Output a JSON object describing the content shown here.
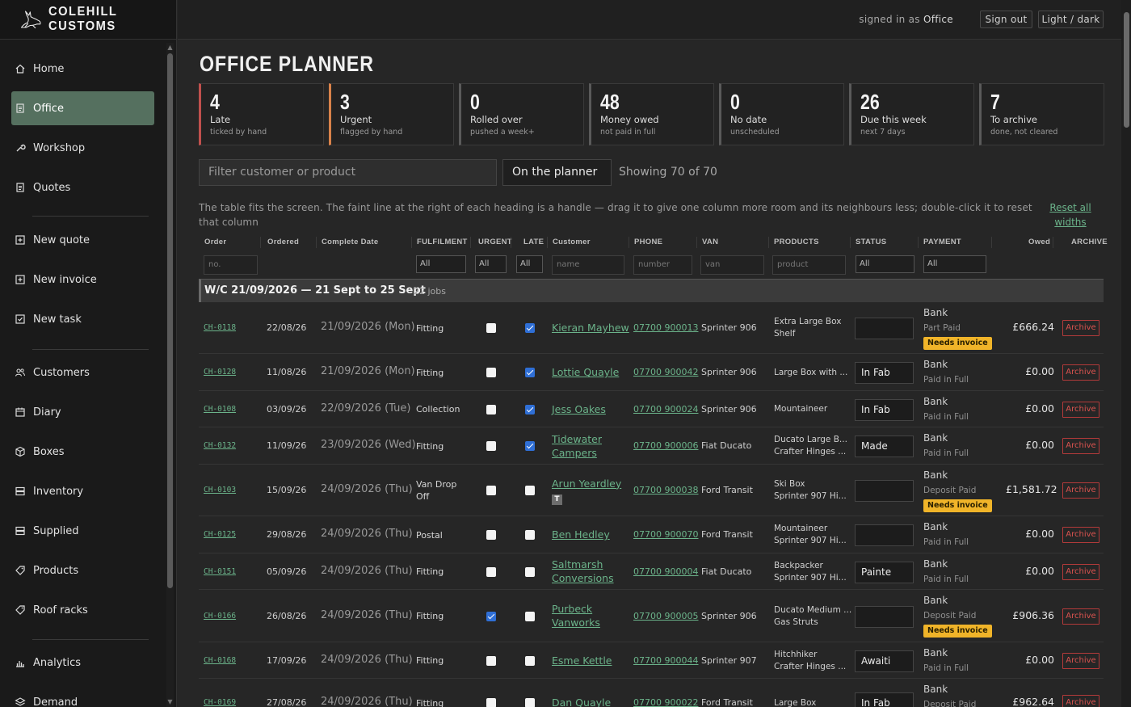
{
  "app": {
    "brand": "COLEHILL CUSTOMS"
  },
  "topbar": {
    "signed_prefix": "signed in as",
    "user": "Office",
    "sign_out": "Sign out",
    "theme": "Light / dark"
  },
  "sidebar": {
    "items": [
      {
        "label": "Home",
        "icon": "home-icon"
      },
      {
        "label": "Office",
        "icon": "document-icon",
        "active": true
      },
      {
        "label": "Workshop",
        "icon": "wrench-icon"
      },
      {
        "label": "Quotes",
        "icon": "document-icon"
      },
      {
        "label": "New quote",
        "icon": "plus-box-icon"
      },
      {
        "label": "New invoice",
        "icon": "plus-box-icon"
      },
      {
        "label": "New task",
        "icon": "check-box-icon"
      },
      {
        "label": "Customers",
        "icon": "users-icon"
      },
      {
        "label": "Diary",
        "icon": "calendar-icon"
      },
      {
        "label": "Boxes",
        "icon": "box-icon"
      },
      {
        "label": "Inventory",
        "icon": "stack-icon"
      },
      {
        "label": "Supplied",
        "icon": "stack-icon"
      },
      {
        "label": "Products",
        "icon": "tag-icon"
      },
      {
        "label": "Roof racks",
        "icon": "tag-icon"
      },
      {
        "label": "Analytics",
        "icon": "bar-chart-icon"
      },
      {
        "label": "Demand",
        "icon": "layers-icon"
      }
    ]
  },
  "page": {
    "title": "OFFICE PLANNER"
  },
  "cards": [
    {
      "num": "4",
      "label": "Late",
      "sub": "ticked by hand",
      "color": "#c0504d"
    },
    {
      "num": "3",
      "label": "Urgent",
      "sub": "flagged by hand",
      "color": "#d9824a"
    },
    {
      "num": "0",
      "label": "Rolled over",
      "sub": "pushed a week+",
      "color": "#5a5a5a"
    },
    {
      "num": "48",
      "label": "Money owed",
      "sub": "not paid in full",
      "color": "#5a5a5a"
    },
    {
      "num": "0",
      "label": "No date",
      "sub": "unscheduled",
      "color": "#5a5a5a"
    },
    {
      "num": "26",
      "label": "Due this week",
      "sub": "next 7 days",
      "color": "#5a5a5a"
    },
    {
      "num": "7",
      "label": "To archive",
      "sub": "done, not cleared",
      "color": "#5a5a5a"
    }
  ],
  "controls": {
    "filter_placeholder": "Filter customer or product",
    "view": "On the planner",
    "showing": "Showing 70 of 70"
  },
  "hint": "The table fits the screen. The faint line at the right of each heading is a handle — drag it to give one column more room and its neighbours less; double-click it to reset that column",
  "reset": "Reset all widths",
  "headers": [
    "Order",
    "Ordered",
    "Complete Date",
    "FULFILMENT",
    "URGENT",
    "LATE",
    "Customer",
    "PHONE",
    "VAN",
    "PRODUCTS",
    "STATUS",
    "PAYMENT",
    "Owed",
    "ARCHIVE"
  ],
  "filters": {
    "order": "no.",
    "fulfilment": "All",
    "urgent": "All",
    "late": "All",
    "customer": "name",
    "phone": "number",
    "van": "van",
    "products": "product",
    "status": "All",
    "payment": "All"
  },
  "group": {
    "title": "W/C 21/09/2026 — 21 Sept to 25 Sept",
    "count": "22 jobs"
  },
  "rows": [
    {
      "order": "CH-0118",
      "ordered": "22/08/26",
      "date": "21/09/2026",
      "day": "(Mon)",
      "fulfil": [
        "Fitting"
      ],
      "urgent": false,
      "late": true,
      "customer": [
        "Kieran Mayhew"
      ],
      "phone": "07700 900013",
      "van": "Sprinter 906",
      "products": [
        "Extra Large Box",
        "Shelf"
      ],
      "status": "",
      "pay": "Bank",
      "pay2": "Part Paid",
      "needs": "Needs invoice",
      "owed": "£666.24",
      "archive": "Archive"
    },
    {
      "order": "CH-0128",
      "ordered": "11/08/26",
      "date": "21/09/2026",
      "day": "(Mon)",
      "fulfil": [
        "Fitting"
      ],
      "urgent": false,
      "late": true,
      "customer": [
        "Lottie Quayle"
      ],
      "phone": "07700 900042",
      "van": "Sprinter 906",
      "products": [
        "Large Box with ..."
      ],
      "status": "In Fab",
      "pay": "Bank",
      "pay2": "Paid in Full",
      "needs": "",
      "owed": "£0.00",
      "archive": "Archive"
    },
    {
      "order": "CH-0108",
      "ordered": "03/09/26",
      "date": "22/09/2026",
      "day": "(Tue)",
      "fulfil": [
        "Collection"
      ],
      "urgent": false,
      "late": true,
      "customer": [
        "Jess Oakes"
      ],
      "phone": "07700 900024",
      "van": "Sprinter 906",
      "products": [
        "Mountaineer"
      ],
      "status": "In Fab",
      "pay": "Bank",
      "pay2": "Paid in Full",
      "needs": "",
      "owed": "£0.00",
      "archive": "Archive"
    },
    {
      "order": "CH-0132",
      "ordered": "11/09/26",
      "date": "23/09/2026",
      "day": "(Wed)",
      "fulfil": [
        "Fitting"
      ],
      "urgent": false,
      "late": true,
      "customer": [
        "Tidewater",
        "Campers"
      ],
      "phone": "07700 900006",
      "van": "Fiat Ducato",
      "products": [
        "Ducato Large B...",
        "Crafter Hinges ..."
      ],
      "status": "Made",
      "pay": "Bank",
      "pay2": "Paid in Full",
      "needs": "",
      "owed": "£0.00",
      "archive": "Archive"
    },
    {
      "order": "CH-0103",
      "ordered": "15/09/26",
      "date": "24/09/2026",
      "day": "(Thu)",
      "fulfil": [
        "Van Drop",
        "Off"
      ],
      "urgent": false,
      "late": false,
      "customer": [
        "Arun Yeardley"
      ],
      "tbadge": "T",
      "phone": "07700 900038",
      "van": "Ford Transit",
      "products": [
        "Ski Box",
        "Sprinter 907 Hi..."
      ],
      "status": "",
      "pay": "Bank",
      "pay2": "Deposit Paid",
      "needs": "Needs invoice",
      "owed": "£1,581.72",
      "archive": "Archive"
    },
    {
      "order": "CH-0125",
      "ordered": "29/08/26",
      "date": "24/09/2026",
      "day": "(Thu)",
      "fulfil": [
        "Postal"
      ],
      "urgent": false,
      "late": false,
      "customer": [
        "Ben Hedley"
      ],
      "phone": "07700 900070",
      "van": "Ford Transit",
      "products": [
        "Mountaineer",
        "Sprinter 907 Hi..."
      ],
      "status": "",
      "pay": "Bank",
      "pay2": "Paid in Full",
      "needs": "",
      "owed": "£0.00",
      "archive": "Archive"
    },
    {
      "order": "CH-0151",
      "ordered": "05/09/26",
      "date": "24/09/2026",
      "day": "(Thu)",
      "fulfil": [
        "Fitting"
      ],
      "urgent": false,
      "late": false,
      "customer": [
        "Saltmarsh",
        "Conversions"
      ],
      "phone": "07700 900004",
      "van": "Fiat Ducato",
      "products": [
        "Backpacker",
        "Sprinter 907 Hi..."
      ],
      "status": "Painte",
      "pay": "Bank",
      "pay2": "Paid in Full",
      "needs": "",
      "owed": "£0.00",
      "archive": "Archive"
    },
    {
      "order": "CH-0166",
      "ordered": "26/08/26",
      "date": "24/09/2026",
      "day": "(Thu)",
      "fulfil": [
        "Fitting"
      ],
      "urgent": true,
      "late": false,
      "customer": [
        "Purbeck",
        "Vanworks"
      ],
      "phone": "07700 900005",
      "van": "Sprinter 906",
      "products": [
        "Ducato Medium ...",
        "Gas Struts"
      ],
      "status": "",
      "pay": "Bank",
      "pay2": "Deposit Paid",
      "needs": "Needs invoice",
      "owed": "£906.36",
      "archive": "Archive"
    },
    {
      "order": "CH-0168",
      "ordered": "17/09/26",
      "date": "24/09/2026",
      "day": "(Thu)",
      "fulfil": [
        "Fitting"
      ],
      "urgent": false,
      "late": false,
      "customer": [
        "Esme Kettle"
      ],
      "phone": "07700 900044",
      "van": "Sprinter 907",
      "products": [
        "Hitchhiker",
        "Crafter Hinges ..."
      ],
      "status": "Awaiti",
      "pay": "Bank",
      "pay2": "Paid in Full",
      "needs": "",
      "owed": "£0.00",
      "archive": "Archive"
    },
    {
      "order": "CH-0169",
      "ordered": "27/08/26",
      "date": "24/09/2026",
      "day": "(Thu)",
      "fulfil": [
        "Fitting"
      ],
      "urgent": false,
      "late": false,
      "customer": [
        "Dan Quayle"
      ],
      "phone": "07700 900022",
      "van": "Ford Transit",
      "products": [
        "Large Box"
      ],
      "status": "In Fab",
      "pay": "Bank",
      "pay2": "Deposit Paid",
      "needs": "",
      "owed": "£962.64",
      "archive": "Archive"
    }
  ]
}
